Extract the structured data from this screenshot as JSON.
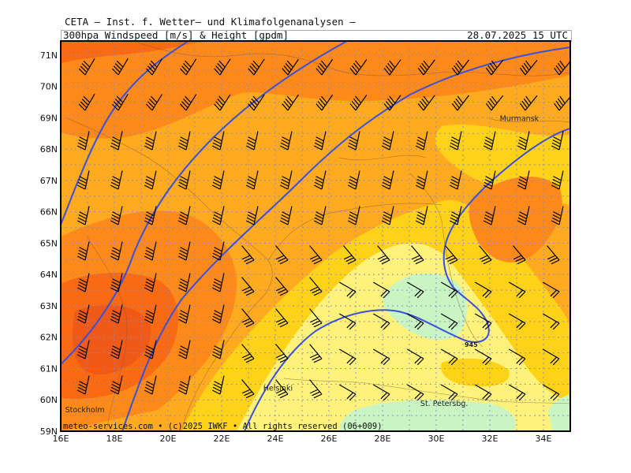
{
  "header": {
    "organization": "CETA – Inst. f. Wetter– und Klimafolgenanalysen –",
    "title": "300hpa_Windspeed_[m/s]_&_Height_[gpdm]",
    "valid_time": "28.07.2025  15 UTC"
  },
  "credit": "meteo-services.com • (c)2025 IWKF • All rights reserved (06+009)",
  "axes": {
    "lon_labels": [
      "16E",
      "18E",
      "20E",
      "22E",
      "24E",
      "26E",
      "28E",
      "30E",
      "32E",
      "34E"
    ],
    "lat_labels": [
      "59N",
      "60N",
      "61N",
      "62N",
      "63N",
      "64N",
      "65N",
      "66N",
      "67N",
      "68N",
      "69N",
      "70N",
      "71N"
    ]
  },
  "cities": [
    {
      "name": "Murmansk",
      "lon": 33.1,
      "lat": 68.9
    },
    {
      "name": "Helsinki",
      "lon": 24.1,
      "lat": 60.3
    },
    {
      "name": "Stockholm",
      "lon": 16.9,
      "lat": 59.6
    },
    {
      "name": "St. Petersbg.",
      "lon": 30.3,
      "lat": 59.8
    }
  ],
  "contours": [
    {
      "label": "945",
      "lon": 31.3,
      "lat": 61.8
    }
  ],
  "colors": {
    "wind_very_low": "#c9f5c3",
    "wind_low": "#fff27a",
    "wind_mid_low": "#ffd21a",
    "wind_mid": "#ffaa1f",
    "wind_high": "#ff8a1a",
    "wind_very_high": "#f96a12",
    "wind_max": "#f05a18",
    "height_contour": "#3a50dc",
    "coastline": "#7a5a30"
  }
}
